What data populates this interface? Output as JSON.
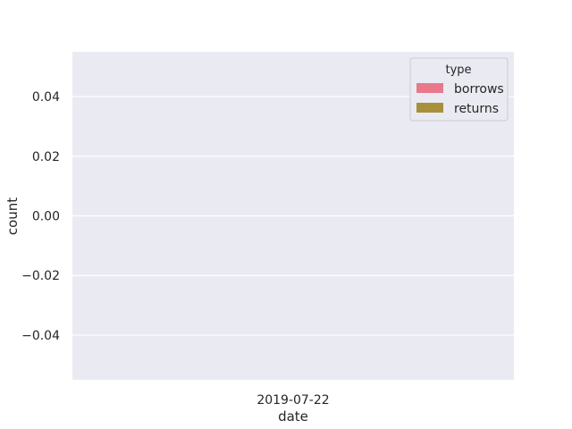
{
  "chart_data": {
    "type": "bar",
    "categories": [
      "2019-07-22"
    ],
    "series": [
      {
        "name": "borrows",
        "values": [
          0
        ],
        "color": "#e8788a"
      },
      {
        "name": "returns",
        "values": [
          0
        ],
        "color": "#a88f3a"
      }
    ],
    "xlabel": "date",
    "ylabel": "count",
    "ylim": [
      -0.055,
      0.055
    ],
    "yticks": [
      0.04,
      0.02,
      0.0,
      -0.02,
      -0.04
    ],
    "ytick_labels": [
      "0.04",
      "0.02",
      "0.00",
      "−0.02",
      "−0.04"
    ],
    "grid": true,
    "legend": {
      "title": "type",
      "placement": "top-right"
    },
    "colors": {
      "plot_background": "#eaeaf2",
      "grid": "#ffffff",
      "text": "#262626"
    }
  }
}
